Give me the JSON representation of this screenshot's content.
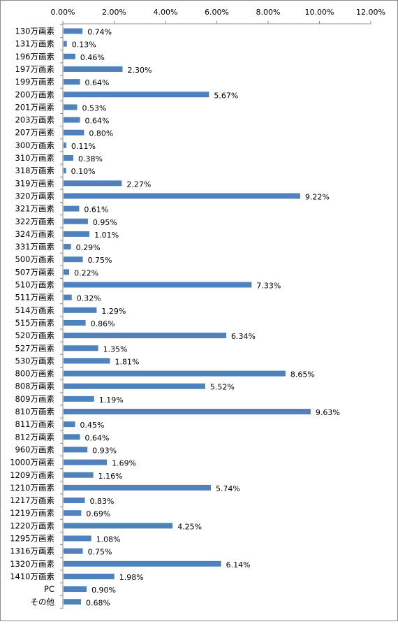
{
  "chart_data": {
    "type": "bar",
    "orientation": "horizontal",
    "xlim": [
      0,
      12
    ],
    "x_ticks": [
      0,
      2,
      4,
      6,
      8,
      10,
      12
    ],
    "x_tick_labels": [
      "0.00%",
      "2.00%",
      "4.00%",
      "6.00%",
      "8.00%",
      "10.00%",
      "12.00%"
    ],
    "x_axis_position": "top",
    "grid": false,
    "bar_color": "#4f81bd",
    "categories": [
      "130万画素",
      "131万画素",
      "196万画素",
      "197万画素",
      "199万画素",
      "200万画素",
      "201万画素",
      "203万画素",
      "207万画素",
      "300万画素",
      "310万画素",
      "318万画素",
      "319万画素",
      "320万画素",
      "321万画素",
      "322万画素",
      "324万画素",
      "331万画素",
      "500万画素",
      "507万画素",
      "510万画素",
      "511万画素",
      "514万画素",
      "515万画素",
      "520万画素",
      "527万画素",
      "530万画素",
      "800万画素",
      "808万画素",
      "809万画素",
      "810万画素",
      "811万画素",
      "812万画素",
      "960万画素",
      "1000万画素",
      "1209万画素",
      "1210万画素",
      "1217万画素",
      "1219万画素",
      "1220万画素",
      "1295万画素",
      "1316万画素",
      "1320万画素",
      "1410万画素",
      "PC",
      "その他"
    ],
    "values": [
      0.74,
      0.13,
      0.46,
      2.3,
      0.64,
      5.67,
      0.53,
      0.64,
      0.8,
      0.11,
      0.38,
      0.1,
      2.27,
      9.22,
      0.61,
      0.95,
      1.01,
      0.29,
      0.75,
      0.22,
      7.33,
      0.32,
      1.29,
      0.86,
      6.34,
      1.35,
      1.81,
      8.65,
      5.52,
      1.19,
      9.63,
      0.45,
      0.64,
      0.93,
      1.69,
      1.16,
      5.74,
      0.83,
      0.69,
      4.25,
      1.08,
      0.75,
      6.14,
      1.98,
      0.9,
      0.68
    ],
    "data_labels": [
      "0.74%",
      "0.13%",
      "0.46%",
      "2.30%",
      "0.64%",
      "5.67%",
      "0.53%",
      "0.64%",
      "0.80%",
      "0.11%",
      "0.38%",
      "0.10%",
      "2.27%",
      "9.22%",
      "0.61%",
      "0.95%",
      "1.01%",
      "0.29%",
      "0.75%",
      "0.22%",
      "7.33%",
      "0.32%",
      "1.29%",
      "0.86%",
      "6.34%",
      "1.35%",
      "1.81%",
      "8.65%",
      "5.52%",
      "1.19%",
      "9.63%",
      "0.45%",
      "0.64%",
      "0.93%",
      "1.69%",
      "1.16%",
      "5.74%",
      "0.83%",
      "0.69%",
      "4.25%",
      "1.08%",
      "0.75%",
      "6.14%",
      "1.98%",
      "0.90%",
      "0.68%"
    ]
  }
}
